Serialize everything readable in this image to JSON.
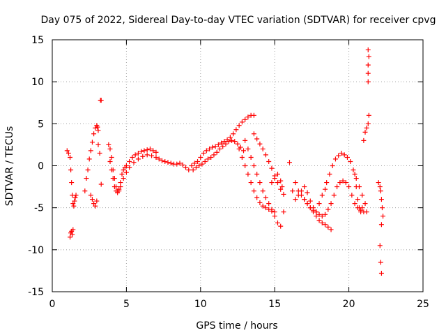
{
  "chart_data": {
    "type": "scatter",
    "title": "Day 075 of 2022, Sidereal Day-to-day VTEC variation (SDTVAR) for receiver cpvg",
    "xlabel": "GPS time / hours",
    "ylabel": "SDTVAR / TECUs",
    "xlim": [
      0,
      25
    ],
    "ylim": [
      -15,
      15
    ],
    "x_ticks": [
      0,
      5,
      10,
      15,
      20,
      25
    ],
    "y_ticks": [
      -15,
      -10,
      -5,
      0,
      5,
      10,
      15
    ],
    "grid": true,
    "marker": "+",
    "color": "#ff0000",
    "series": [
      {
        "name": "SDTVAR",
        "x": [
          1.0,
          1.1,
          1.2,
          1.25,
          1.3,
          1.35,
          1.4,
          1.45,
          1.5,
          1.55,
          1.6,
          1.2,
          1.25,
          1.3,
          1.35,
          1.4,
          2.2,
          2.3,
          2.4,
          2.5,
          2.6,
          2.7,
          2.8,
          2.9,
          3.0,
          3.05,
          3.1,
          2.6,
          2.7,
          2.8,
          2.9,
          3.0,
          3.1,
          3.2,
          3.3,
          3.3,
          3.25,
          3.8,
          3.9,
          4.0,
          4.1,
          4.2,
          4.3,
          4.4,
          4.5,
          4.6,
          4.7,
          4.8,
          4.9,
          5.0,
          5.2,
          5.4,
          5.6,
          5.8,
          6.0,
          6.2,
          6.4,
          6.6,
          6.8,
          7.0,
          3.9,
          4.0,
          4.1,
          4.2,
          4.3,
          4.4,
          4.5,
          4.6,
          4.8,
          5.0,
          5.2,
          5.5,
          5.8,
          6.1,
          6.4,
          6.7,
          7.0,
          7.2,
          7.4,
          7.6,
          7.8,
          8.0,
          8.2,
          8.4,
          8.6,
          8.8,
          9.0,
          9.2,
          9.4,
          9.6,
          9.8,
          10.0,
          10.2,
          10.4,
          10.6,
          10.8,
          11.0,
          11.2,
          11.4,
          11.6,
          11.8,
          12.0,
          12.2,
          12.4,
          12.6,
          12.8,
          13.0,
          13.2,
          13.4,
          13.6,
          9.5,
          9.7,
          9.9,
          10.1,
          10.3,
          10.5,
          10.7,
          10.9,
          11.1,
          11.3,
          11.5,
          11.7,
          11.9,
          12.1,
          12.3,
          12.5,
          12.7,
          12.9,
          12.6,
          12.8,
          13.0,
          13.2,
          13.4,
          13.6,
          13.8,
          14.0,
          14.2,
          14.4,
          14.6,
          14.8,
          15.0,
          13.0,
          13.2,
          13.4,
          13.6,
          13.8,
          14.0,
          14.2,
          14.4,
          14.6,
          14.8,
          15.0,
          15.2,
          15.4,
          13.6,
          13.8,
          14.0,
          14.2,
          14.4,
          14.6,
          14.8,
          15.0,
          15.2,
          15.4,
          15.6,
          14.8,
          15.0,
          15.2,
          15.4,
          15.5,
          15.6,
          16.0,
          16.2,
          16.4,
          16.6,
          16.8,
          17.0,
          17.2,
          17.4,
          17.6,
          17.8,
          18.0,
          18.2,
          18.4,
          17.0,
          17.2,
          17.4,
          17.6,
          17.8,
          18.0,
          18.2,
          18.4,
          18.6,
          18.8,
          19.0,
          19.2,
          19.4,
          19.6,
          19.8,
          20.0,
          20.2,
          20.4,
          20.6,
          20.8,
          21.0,
          16.4,
          16.6,
          16.8,
          17.0,
          17.2,
          17.4,
          17.6,
          17.8,
          18.0,
          18.2,
          18.4,
          18.6,
          18.8,
          18.5,
          18.7,
          18.9,
          19.1,
          19.3,
          19.5,
          19.7,
          19.9,
          20.1,
          20.3,
          20.5,
          20.7,
          20.9,
          20.4,
          20.5,
          20.6,
          20.7,
          20.8,
          20.9,
          21.0,
          21.1,
          21.2,
          21.3,
          21.35,
          21.3,
          21.3,
          21.3,
          21.35,
          21.3,
          21.2,
          21.1,
          22.0,
          22.1,
          22.15,
          22.2,
          22.25,
          22.3,
          22.2,
          22.1,
          22.15,
          22.2
        ],
        "y": [
          1.8,
          1.5,
          1.0,
          -0.5,
          -2.0,
          -3.5,
          -4.5,
          -4.8,
          -4.2,
          -3.8,
          -3.5,
          -8.5,
          -8.0,
          -7.8,
          -8.2,
          -7.6,
          -3.0,
          -1.5,
          -0.5,
          0.8,
          1.8,
          2.8,
          3.8,
          4.5,
          4.8,
          4.6,
          4.2,
          -3.5,
          -4.0,
          -4.5,
          -4.8,
          -4.2,
          2.5,
          1.5,
          -2.2,
          7.8,
          7.8,
          2.5,
          2.0,
          1.0,
          -0.5,
          -1.5,
          -2.5,
          -3.0,
          -2.8,
          -2.0,
          -1.0,
          -0.5,
          -0.2,
          0.0,
          0.5,
          1.0,
          1.3,
          1.5,
          1.7,
          1.8,
          1.9,
          2.0,
          1.8,
          1.6,
          0.5,
          -0.5,
          -1.5,
          -2.5,
          -3.0,
          -3.2,
          -3.0,
          -2.5,
          -1.5,
          -0.8,
          -0.2,
          0.4,
          0.8,
          1.1,
          1.3,
          1.2,
          1.0,
          0.8,
          0.6,
          0.5,
          0.4,
          0.3,
          0.2,
          0.2,
          0.3,
          0.1,
          -0.2,
          -0.5,
          0.0,
          0.3,
          0.5,
          1.0,
          1.5,
          1.8,
          2.0,
          2.2,
          2.3,
          2.5,
          2.7,
          2.9,
          3.1,
          3.4,
          3.8,
          4.3,
          4.8,
          5.2,
          5.5,
          5.8,
          6.0,
          6.0,
          -0.5,
          -0.2,
          0.0,
          0.2,
          0.5,
          0.8,
          1.0,
          1.3,
          1.6,
          2.0,
          2.3,
          2.6,
          2.9,
          3.0,
          2.9,
          2.6,
          2.2,
          1.8,
          2.0,
          1.0,
          0.0,
          -1.0,
          -2.0,
          -3.0,
          -3.8,
          -4.4,
          -4.8,
          -5.0,
          -5.2,
          -5.4,
          -5.5,
          3.0,
          2.0,
          1.0,
          0.0,
          -1.0,
          -2.0,
          -3.0,
          -3.8,
          -4.5,
          -5.2,
          -6.0,
          -6.8,
          -7.2,
          3.8,
          3.2,
          2.6,
          2.0,
          1.3,
          0.5,
          -0.3,
          -1.2,
          -2.0,
          -2.8,
          -3.4,
          -2.0,
          -1.5,
          -1.0,
          -1.8,
          -2.5,
          -5.5,
          0.4,
          -3.0,
          -4.0,
          -3.5,
          -3.0,
          -2.5,
          -3.2,
          -4.2,
          -5.0,
          -5.5,
          -4.5,
          -3.5,
          -2.8,
          -4.0,
          -4.5,
          -5.0,
          -5.3,
          -5.5,
          -5.8,
          -6.0,
          -5.8,
          -5.2,
          -4.5,
          -3.5,
          -2.5,
          -2.0,
          -1.8,
          -2.0,
          -2.5,
          -3.5,
          -4.5,
          -5.0,
          -5.3,
          -5.5,
          -2.0,
          -3.0,
          -3.5,
          -4.0,
          -4.5,
          -5.0,
          -5.5,
          -6.0,
          -6.5,
          -6.8,
          -7.0,
          -7.3,
          -7.6,
          -2.0,
          -1.0,
          0.0,
          0.8,
          1.2,
          1.5,
          1.3,
          1.0,
          0.5,
          -0.5,
          -1.5,
          -2.5,
          -3.5,
          -1.0,
          -2.5,
          -4.0,
          -5.0,
          -5.5,
          -5.0,
          3.0,
          4.0,
          4.5,
          5.0,
          6.0,
          10.0,
          11.0,
          12.0,
          13.0,
          13.8,
          -5.5,
          -4.5,
          -2.0,
          -2.5,
          -3.0,
          -4.0,
          -5.0,
          -6.0,
          -7.0,
          -9.5,
          -11.5,
          -12.8
        ]
      }
    ]
  }
}
